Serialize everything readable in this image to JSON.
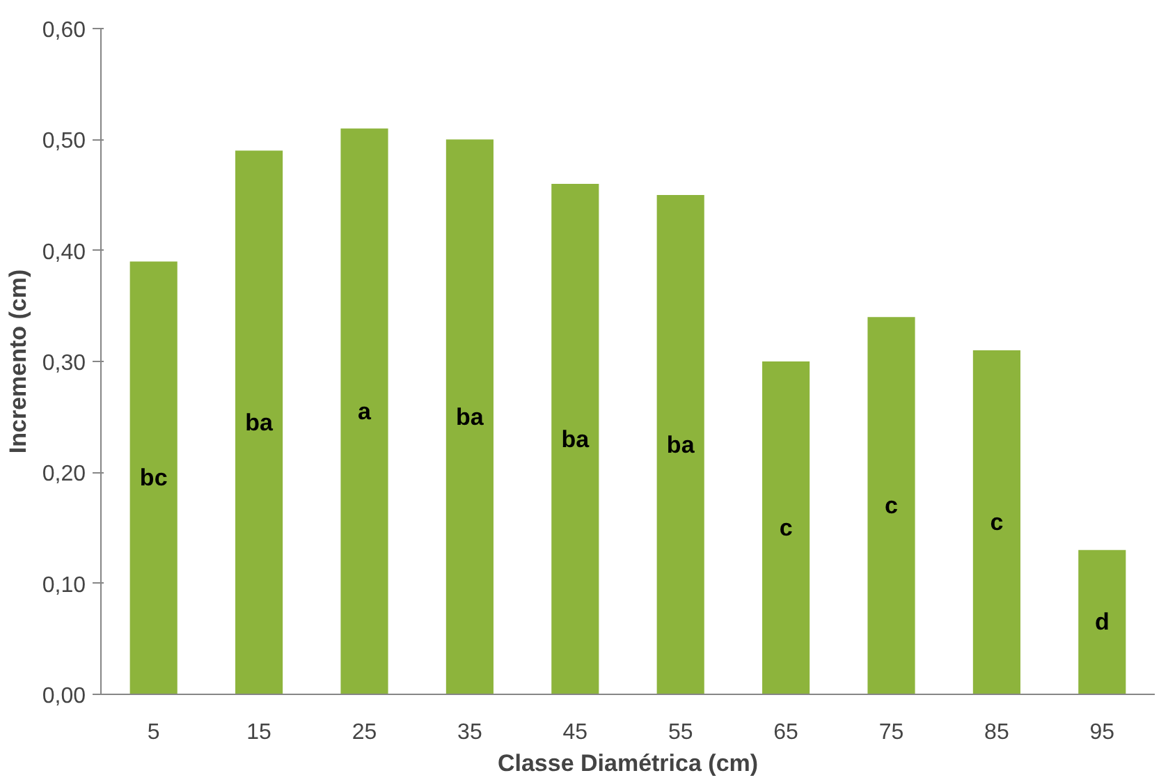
{
  "chart_data": {
    "type": "bar",
    "xlabel": "Classe Diamétrica (cm)",
    "ylabel": "Incremento (cm)",
    "categories": [
      "5",
      "15",
      "25",
      "35",
      "45",
      "55",
      "65",
      "75",
      "85",
      "95"
    ],
    "values": [
      0.39,
      0.49,
      0.51,
      0.5,
      0.46,
      0.45,
      0.3,
      0.34,
      0.31,
      0.13
    ],
    "color": "#8db43c",
    "ylim": [
      0,
      0.6
    ],
    "yticks": [
      {
        "value": 0,
        "label": "0,00"
      },
      {
        "value": 0.1,
        "label": "0,10"
      },
      {
        "value": 0.2,
        "label": "0,20"
      },
      {
        "value": 0.3,
        "label": "0,30"
      },
      {
        "value": 0.4,
        "label": "0,40"
      },
      {
        "value": 0.5,
        "label": "0,50"
      },
      {
        "value": 0.6,
        "label": "0,60"
      }
    ],
    "grid": false,
    "annotations": [
      "bc",
      "ba",
      "a",
      "ba",
      "ba",
      "ba",
      "c",
      "c",
      "c",
      "d"
    ]
  }
}
